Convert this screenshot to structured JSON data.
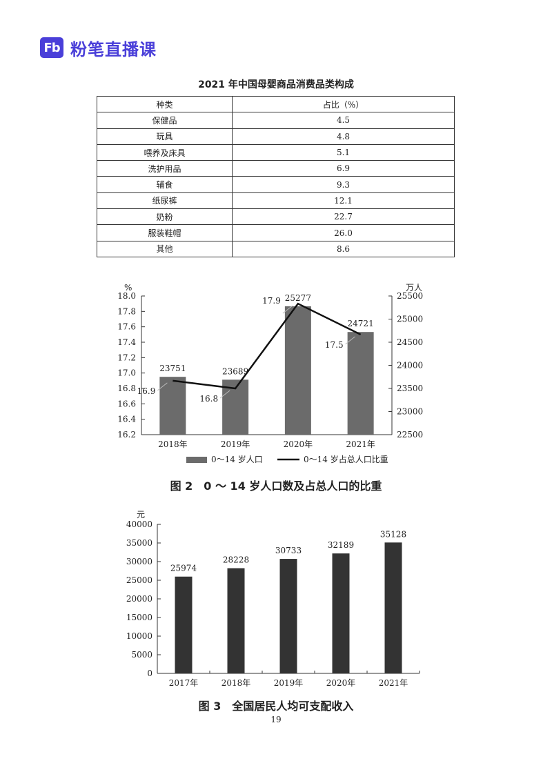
{
  "brand": {
    "logo": "Fb",
    "name": "粉笔直播课"
  },
  "page_number": "19",
  "chart_data": [
    {
      "type": "table",
      "title": "2021 年中国母婴商品消费品类构成",
      "columns": [
        "种类",
        "占比（%）"
      ],
      "rows": [
        [
          "保健品",
          "4.5"
        ],
        [
          "玩具",
          "4.8"
        ],
        [
          "喂养及床具",
          "5.1"
        ],
        [
          "洗护用品",
          "6.9"
        ],
        [
          "辅食",
          "9.3"
        ],
        [
          "纸尿裤",
          "12.1"
        ],
        [
          "奶粉",
          "22.7"
        ],
        [
          "服装鞋帽",
          "26.0"
        ],
        [
          "其他",
          "8.6"
        ]
      ]
    },
    {
      "type": "bar",
      "title": "图 2　0 ～ 14 岁人口数及占总人口的比重",
      "categories": [
        "2018年",
        "2019年",
        "2020年",
        "2021年"
      ],
      "y_left_label": "%",
      "y_right_label": "万人",
      "y_left_range": [
        16.2,
        18.0
      ],
      "y_left_ticks": [
        "16.2",
        "16.4",
        "16.6",
        "16.8",
        "17.0",
        "17.2",
        "17.4",
        "17.6",
        "17.8",
        "18.0"
      ],
      "y_right_range": [
        22500,
        25500
      ],
      "y_right_ticks": [
        "22500",
        "23000",
        "23500",
        "24000",
        "24500",
        "25000",
        "25500"
      ],
      "series": [
        {
          "name": "0～14 岁人口",
          "type": "bar",
          "axis": "right",
          "values": [
            23751,
            23689,
            25277,
            24721
          ],
          "labels": [
            "23751",
            "23689",
            "25277",
            "24721"
          ],
          "color": "#6b6b6b"
        },
        {
          "name": "0～14 岁占总人口比重",
          "type": "line",
          "axis": "left",
          "values": [
            16.9,
            16.8,
            17.9,
            17.5
          ],
          "labels": [
            "16.9",
            "16.8",
            "17.9",
            "17.5"
          ],
          "color": "#111111"
        }
      ],
      "legend": "bottom"
    },
    {
      "type": "bar",
      "title": "图 3　全国居民人均可支配收入",
      "categories": [
        "2017年",
        "2018年",
        "2019年",
        "2020年",
        "2021年"
      ],
      "ylabel": "元",
      "ylim": [
        0,
        40000
      ],
      "y_ticks": [
        "0",
        "5000",
        "10000",
        "15000",
        "20000",
        "25000",
        "30000",
        "35000",
        "40000"
      ],
      "values": [
        25974,
        28228,
        30733,
        32189,
        35128
      ],
      "labels": [
        "25974",
        "28228",
        "30733",
        "32189",
        "35128"
      ],
      "color": "#333333"
    }
  ]
}
